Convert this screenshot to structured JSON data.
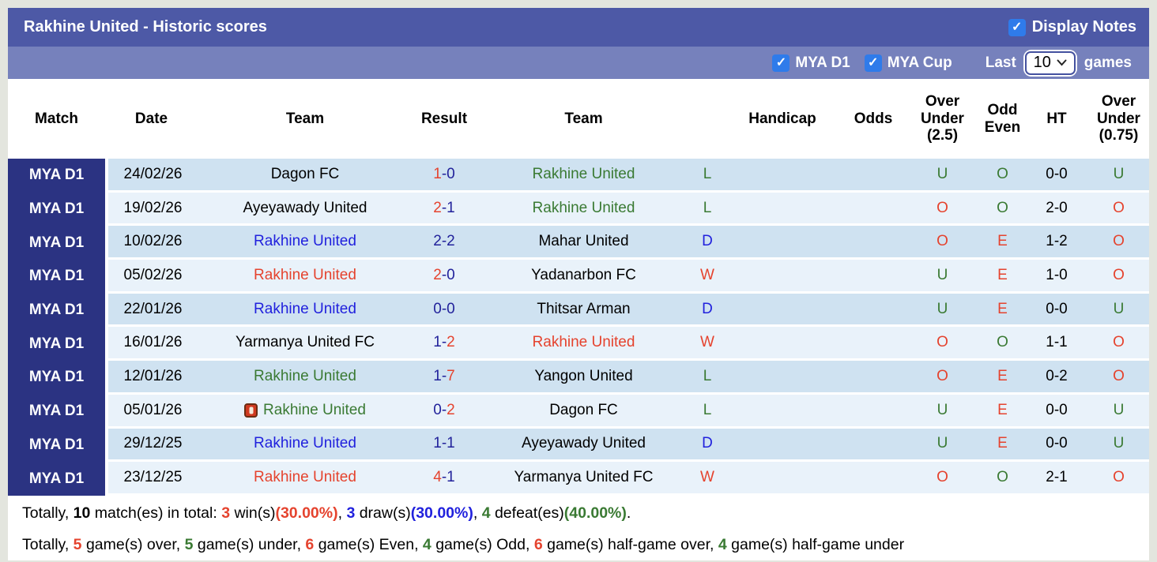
{
  "title_bar": {
    "title": "Rakhine United - Historic scores",
    "display_notes_label": "Display Notes",
    "display_notes_checked": true
  },
  "filter_bar": {
    "mya_d1_label": "MYA D1",
    "mya_d1_checked": true,
    "mya_cup_label": "MYA Cup",
    "mya_cup_checked": true,
    "last_label": "Last",
    "games_count": "10",
    "games_label": "games"
  },
  "columns": [
    "Match",
    "Date",
    "Team",
    "Result",
    "Team",
    "",
    "Handicap",
    "Odds",
    "Over\nUnder\n(2.5)",
    "Odd\nEven",
    "HT",
    "Over\nUnder\n(0.75)"
  ],
  "colors": {
    "red": "#e5432e",
    "green": "#3a7a33",
    "blue": "#2121dd",
    "black": "#000000",
    "score_blue": "#22229b",
    "navy": "#2b3382",
    "header_bar": "#4d59a6",
    "filter_bar": "#7681bc",
    "row_odd": "#cfe2f1",
    "row_even": "#e9f2fa",
    "checkbox_blue": "#2f7bea"
  },
  "rows": [
    {
      "league": "MYA D1",
      "date": "24/02/26",
      "home": {
        "name": "Dagon FC",
        "color": "black",
        "red_card": false
      },
      "result": {
        "home": "1",
        "home_color": "red",
        "away": "0",
        "away_color": "blue"
      },
      "away": {
        "name": "Rakhine United",
        "color": "green"
      },
      "handicap_result": {
        "letter": "L",
        "color": "green"
      },
      "handicap": "",
      "odds": "",
      "ou25": {
        "letter": "U",
        "color": "green"
      },
      "odd_even": {
        "letter": "O",
        "color": "green"
      },
      "ht": "0-0",
      "ou075": {
        "letter": "U",
        "color": "green"
      }
    },
    {
      "league": "MYA D1",
      "date": "19/02/26",
      "home": {
        "name": "Ayeyawady United",
        "color": "black",
        "red_card": false
      },
      "result": {
        "home": "2",
        "home_color": "red",
        "away": "1",
        "away_color": "blue"
      },
      "away": {
        "name": "Rakhine United",
        "color": "green"
      },
      "handicap_result": {
        "letter": "L",
        "color": "green"
      },
      "handicap": "",
      "odds": "",
      "ou25": {
        "letter": "O",
        "color": "red"
      },
      "odd_even": {
        "letter": "O",
        "color": "green"
      },
      "ht": "2-0",
      "ou075": {
        "letter": "O",
        "color": "red"
      }
    },
    {
      "league": "MYA D1",
      "date": "10/02/26",
      "home": {
        "name": "Rakhine United",
        "color": "blue",
        "red_card": false
      },
      "result": {
        "home": "2",
        "home_color": "blue",
        "away": "2",
        "away_color": "blue"
      },
      "away": {
        "name": "Mahar United",
        "color": "black"
      },
      "handicap_result": {
        "letter": "D",
        "color": "blue"
      },
      "handicap": "",
      "odds": "",
      "ou25": {
        "letter": "O",
        "color": "red"
      },
      "odd_even": {
        "letter": "E",
        "color": "red"
      },
      "ht": "1-2",
      "ou075": {
        "letter": "O",
        "color": "red"
      }
    },
    {
      "league": "MYA D1",
      "date": "05/02/26",
      "home": {
        "name": "Rakhine United",
        "color": "red",
        "red_card": false
      },
      "result": {
        "home": "2",
        "home_color": "red",
        "away": "0",
        "away_color": "blue"
      },
      "away": {
        "name": "Yadanarbon FC",
        "color": "black"
      },
      "handicap_result": {
        "letter": "W",
        "color": "red"
      },
      "handicap": "",
      "odds": "",
      "ou25": {
        "letter": "U",
        "color": "green"
      },
      "odd_even": {
        "letter": "E",
        "color": "red"
      },
      "ht": "1-0",
      "ou075": {
        "letter": "O",
        "color": "red"
      }
    },
    {
      "league": "MYA D1",
      "date": "22/01/26",
      "home": {
        "name": "Rakhine United",
        "color": "blue",
        "red_card": false
      },
      "result": {
        "home": "0",
        "home_color": "blue",
        "away": "0",
        "away_color": "blue"
      },
      "away": {
        "name": "Thitsar Arman",
        "color": "black"
      },
      "handicap_result": {
        "letter": "D",
        "color": "blue"
      },
      "handicap": "",
      "odds": "",
      "ou25": {
        "letter": "U",
        "color": "green"
      },
      "odd_even": {
        "letter": "E",
        "color": "red"
      },
      "ht": "0-0",
      "ou075": {
        "letter": "U",
        "color": "green"
      }
    },
    {
      "league": "MYA D1",
      "date": "16/01/26",
      "home": {
        "name": "Yarmanya United FC",
        "color": "black",
        "red_card": false
      },
      "result": {
        "home": "1",
        "home_color": "blue",
        "away": "2",
        "away_color": "red"
      },
      "away": {
        "name": "Rakhine United",
        "color": "red"
      },
      "handicap_result": {
        "letter": "W",
        "color": "red"
      },
      "handicap": "",
      "odds": "",
      "ou25": {
        "letter": "O",
        "color": "red"
      },
      "odd_even": {
        "letter": "O",
        "color": "green"
      },
      "ht": "1-1",
      "ou075": {
        "letter": "O",
        "color": "red"
      }
    },
    {
      "league": "MYA D1",
      "date": "12/01/26",
      "home": {
        "name": "Rakhine United",
        "color": "green",
        "red_card": false
      },
      "result": {
        "home": "1",
        "home_color": "blue",
        "away": "7",
        "away_color": "red"
      },
      "away": {
        "name": "Yangon United",
        "color": "black"
      },
      "handicap_result": {
        "letter": "L",
        "color": "green"
      },
      "handicap": "",
      "odds": "",
      "ou25": {
        "letter": "O",
        "color": "red"
      },
      "odd_even": {
        "letter": "E",
        "color": "red"
      },
      "ht": "0-2",
      "ou075": {
        "letter": "O",
        "color": "red"
      }
    },
    {
      "league": "MYA D1",
      "date": "05/01/26",
      "home": {
        "name": "Rakhine United",
        "color": "green",
        "red_card": true
      },
      "result": {
        "home": "0",
        "home_color": "blue",
        "away": "2",
        "away_color": "red"
      },
      "away": {
        "name": "Dagon FC",
        "color": "black"
      },
      "handicap_result": {
        "letter": "L",
        "color": "green"
      },
      "handicap": "",
      "odds": "",
      "ou25": {
        "letter": "U",
        "color": "green"
      },
      "odd_even": {
        "letter": "E",
        "color": "red"
      },
      "ht": "0-0",
      "ou075": {
        "letter": "U",
        "color": "green"
      }
    },
    {
      "league": "MYA D1",
      "date": "29/12/25",
      "home": {
        "name": "Rakhine United",
        "color": "blue",
        "red_card": false
      },
      "result": {
        "home": "1",
        "home_color": "blue",
        "away": "1",
        "away_color": "blue"
      },
      "away": {
        "name": "Ayeyawady United",
        "color": "black"
      },
      "handicap_result": {
        "letter": "D",
        "color": "blue"
      },
      "handicap": "",
      "odds": "",
      "ou25": {
        "letter": "U",
        "color": "green"
      },
      "odd_even": {
        "letter": "E",
        "color": "red"
      },
      "ht": "0-0",
      "ou075": {
        "letter": "U",
        "color": "green"
      }
    },
    {
      "league": "MYA D1",
      "date": "23/12/25",
      "home": {
        "name": "Rakhine United",
        "color": "red",
        "red_card": false
      },
      "result": {
        "home": "4",
        "home_color": "red",
        "away": "1",
        "away_color": "blue"
      },
      "away": {
        "name": "Yarmanya United FC",
        "color": "black"
      },
      "handicap_result": {
        "letter": "W",
        "color": "red"
      },
      "handicap": "",
      "odds": "",
      "ou25": {
        "letter": "O",
        "color": "red"
      },
      "odd_even": {
        "letter": "O",
        "color": "green"
      },
      "ht": "2-1",
      "ou075": {
        "letter": "O",
        "color": "red"
      }
    }
  ],
  "summary": {
    "line1": [
      {
        "t": "Totally, "
      },
      {
        "t": "10",
        "b": 1
      },
      {
        "t": " match(es) in total: "
      },
      {
        "t": "3",
        "c": "red",
        "b": 1
      },
      {
        "t": " win(s)"
      },
      {
        "t": "(30.00%)",
        "c": "red",
        "b": 1
      },
      {
        "t": ", "
      },
      {
        "t": "3",
        "c": "blue",
        "b": 1
      },
      {
        "t": " draw(s)"
      },
      {
        "t": "(30.00%)",
        "c": "blue",
        "b": 1
      },
      {
        "t": ", "
      },
      {
        "t": "4",
        "c": "green",
        "b": 1
      },
      {
        "t": " defeat(es)"
      },
      {
        "t": "(40.00%)",
        "c": "green",
        "b": 1
      },
      {
        "t": "."
      }
    ],
    "line2": [
      {
        "t": "Totally, "
      },
      {
        "t": "5",
        "c": "red",
        "b": 1
      },
      {
        "t": " game(s) over, "
      },
      {
        "t": "5",
        "c": "green",
        "b": 1
      },
      {
        "t": " game(s) under, "
      },
      {
        "t": "6",
        "c": "red",
        "b": 1
      },
      {
        "t": " game(s) Even, "
      },
      {
        "t": "4",
        "c": "green",
        "b": 1
      },
      {
        "t": " game(s) Odd, "
      },
      {
        "t": "6",
        "c": "red",
        "b": 1
      },
      {
        "t": " game(s) half-game over, "
      },
      {
        "t": "4",
        "c": "green",
        "b": 1
      },
      {
        "t": " game(s) half-game under"
      }
    ]
  }
}
